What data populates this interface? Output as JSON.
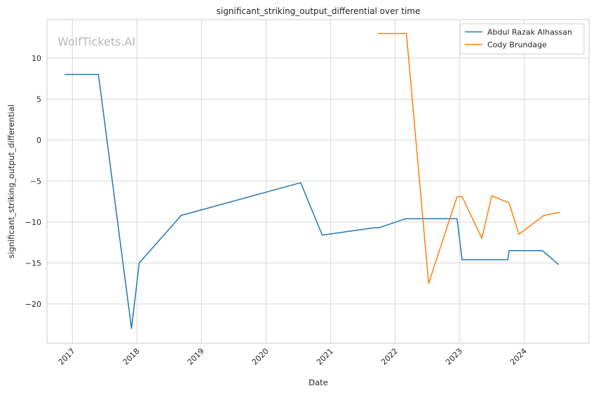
{
  "chart_data": {
    "type": "line",
    "title": "significant_striking_output_differential over time",
    "xlabel": "Date",
    "ylabel": "significant_striking_output_differential",
    "watermark": "WolfTickets.AI",
    "x_ticks": [
      "2017",
      "2018",
      "2019",
      "2020",
      "2021",
      "2022",
      "2023",
      "2024"
    ],
    "y_ticks": [
      10,
      5,
      0,
      -5,
      -10,
      -15,
      -20
    ],
    "xlim": [
      "2016-08-10",
      "2025-01-01"
    ],
    "ylim": [
      -24.8,
      14.7
    ],
    "grid": true,
    "legend_position": "top-right",
    "series": [
      {
        "name": "Abdul Razak Alhassan",
        "color": "#1f77b4",
        "points": [
          [
            "2016-11-19",
            8.0
          ],
          [
            "2017-05-28",
            8.0
          ],
          [
            "2017-12-01",
            -23.0
          ],
          [
            "2018-01-14",
            -15.0
          ],
          [
            "2018-09-08",
            -9.2
          ],
          [
            "2020-07-15",
            -5.2
          ],
          [
            "2020-11-14",
            -11.6
          ],
          [
            "2021-09-04",
            -10.7
          ],
          [
            "2021-10-02",
            -10.7
          ],
          [
            "2022-03-01",
            -9.6
          ],
          [
            "2022-12-17",
            -9.6
          ],
          [
            "2023-01-14",
            -14.6
          ],
          [
            "2023-09-30",
            -14.6
          ],
          [
            "2023-10-07",
            -13.5
          ],
          [
            "2024-04-13",
            -13.5
          ],
          [
            "2024-07-13",
            -15.2
          ]
        ]
      },
      {
        "name": "Cody Brundage",
        "color": "#ff7f0e",
        "points": [
          [
            "2021-09-25",
            13.0
          ],
          [
            "2022-03-05",
            13.0
          ],
          [
            "2022-07-09",
            -17.5
          ],
          [
            "2022-12-17",
            -6.9
          ],
          [
            "2023-01-14",
            -6.9
          ],
          [
            "2023-05-06",
            -12.0
          ],
          [
            "2023-07-01",
            -6.8
          ],
          [
            "2023-09-30",
            -7.6
          ],
          [
            "2023-10-07",
            -7.7
          ],
          [
            "2023-12-02",
            -11.5
          ],
          [
            "2024-04-20",
            -9.2
          ],
          [
            "2024-07-20",
            -8.8
          ]
        ]
      }
    ]
  }
}
